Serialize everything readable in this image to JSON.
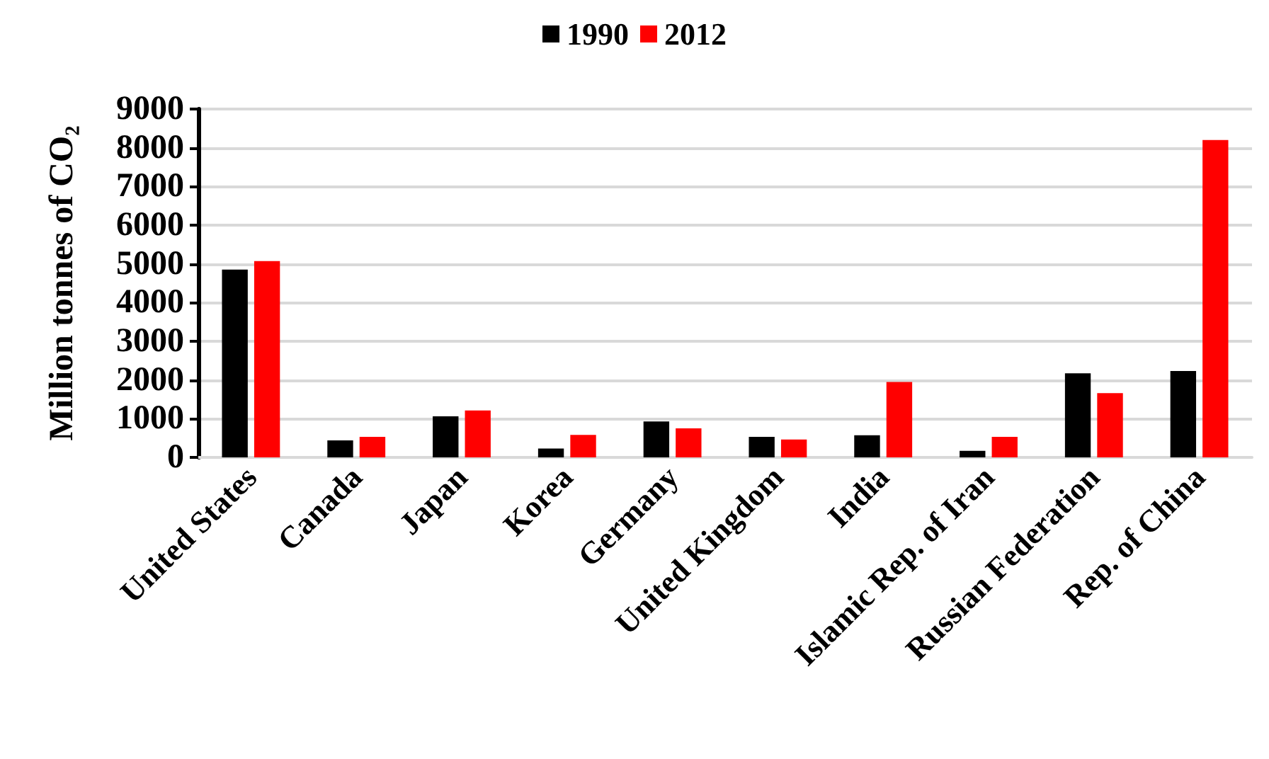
{
  "chart_data": {
    "type": "bar",
    "ylabel": "Million tonnes of CO₂",
    "categories": [
      "United States",
      "Canada",
      "Japan",
      "Korea",
      "Germany",
      "United Kingdom",
      "India",
      "Islamic Rep. of Iran",
      "Russian Federation",
      "Rep. of China"
    ],
    "series": [
      {
        "name": "1990",
        "color": "#000000",
        "values": [
          4850,
          440,
          1060,
          230,
          930,
          530,
          570,
          170,
          2170,
          2230
        ]
      },
      {
        "name": "2012",
        "color": "#ff0000",
        "values": [
          5070,
          530,
          1210,
          580,
          750,
          460,
          1950,
          530,
          1660,
          8200
        ]
      }
    ],
    "ylim": [
      0,
      9000
    ],
    "yticks": [
      0,
      1000,
      2000,
      3000,
      4000,
      5000,
      6000,
      7000,
      8000,
      9000
    ],
    "grid": "y",
    "legend": "top"
  }
}
